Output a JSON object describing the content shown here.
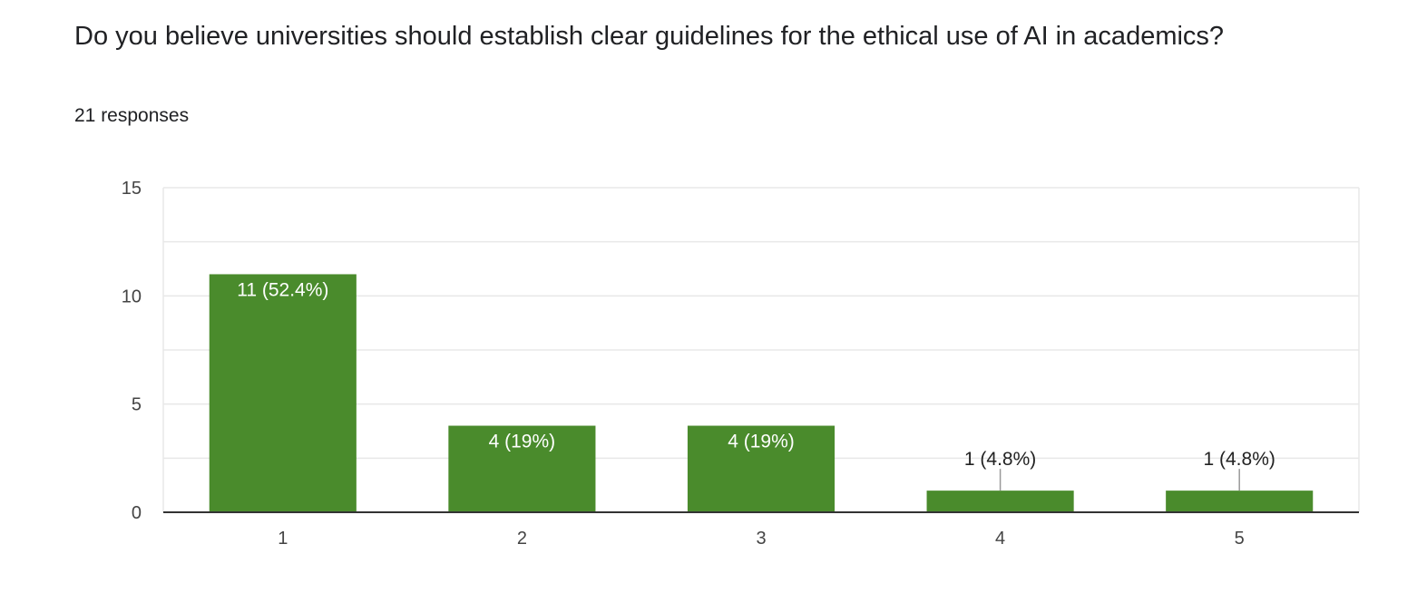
{
  "header": {
    "question": "  Do you believe universities should establish clear guidelines for the ethical use of AI in academics?",
    "responses": "21 responses"
  },
  "colors": {
    "bar": "#4a8b2c",
    "grid": "#e8e8e8",
    "axis": "#333333"
  },
  "chart_data": {
    "type": "bar",
    "categories": [
      "1",
      "2",
      "3",
      "4",
      "5"
    ],
    "values": [
      11,
      4,
      4,
      1,
      1
    ],
    "data_labels": [
      "11 (52.4%)",
      "4 (19%)",
      "4 (19%)",
      "1 (4.8%)",
      "1 (4.8%)"
    ],
    "ylim": [
      0,
      15
    ],
    "yticks": [
      "0",
      "5",
      "10",
      "15"
    ],
    "minor_gridlines": true,
    "legend": "none"
  }
}
